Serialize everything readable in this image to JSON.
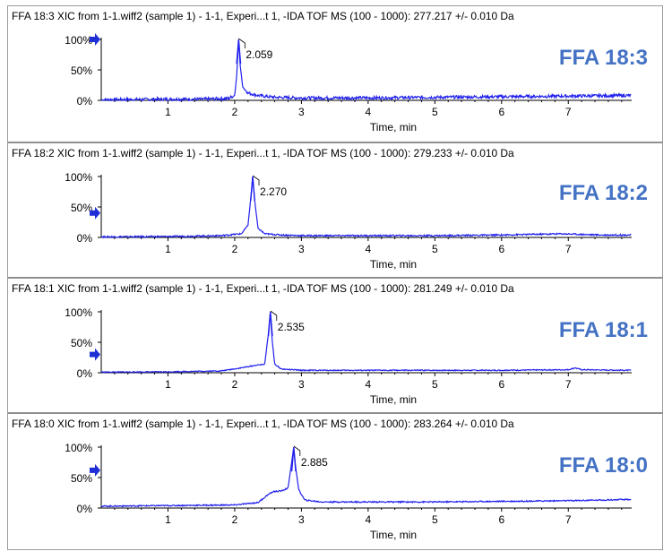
{
  "chart_data": [
    {
      "type": "line",
      "title": "FFA 18:3 XIC from 1-1.wiff2 (sample 1) - 1-1, Experi...t 1, -IDA TOF MS (100 - 1000): 277.217 +/- 0.010 Da",
      "tag": "FFA 18:3",
      "xlabel": "Time, min",
      "ylabel": "",
      "xlim": [
        0,
        7.95
      ],
      "ylim": [
        0,
        100
      ],
      "x_ticks": [
        "1",
        "2",
        "3",
        "4",
        "5",
        "6",
        "7"
      ],
      "y_ticks": [
        "0%",
        "50%",
        "100%"
      ],
      "marker_y": 100,
      "peak_label": "2.059",
      "series": [
        {
          "values": [
            [
              0,
              1
            ],
            [
              0.5,
              1.5
            ],
            [
              1,
              2
            ],
            [
              1.5,
              2
            ],
            [
              1.9,
              3
            ],
            [
              2.0,
              8
            ],
            [
              2.03,
              40
            ],
            [
              2.059,
              100
            ],
            [
              2.08,
              60
            ],
            [
              2.12,
              22
            ],
            [
              2.2,
              12
            ],
            [
              2.35,
              8
            ],
            [
              2.6,
              5
            ],
            [
              3,
              4
            ],
            [
              4,
              4
            ],
            [
              5,
              5
            ],
            [
              6,
              6
            ],
            [
              7,
              7
            ],
            [
              7.9,
              8
            ]
          ]
        }
      ],
      "noise": 2.5
    },
    {
      "type": "line",
      "title": "FFA 18:2 XIC from 1-1.wiff2 (sample 1) - 1-1, Experi...t 1, -IDA TOF MS (100 - 1000): 279.233 +/- 0.010 Da",
      "tag": "FFA 18:2",
      "xlabel": "Time, min",
      "ylabel": "",
      "xlim": [
        0,
        7.95
      ],
      "ylim": [
        0,
        100
      ],
      "x_ticks": [
        "1",
        "2",
        "3",
        "4",
        "5",
        "6",
        "7"
      ],
      "y_ticks": [
        "0%",
        "50%",
        "100%"
      ],
      "marker_y": 40,
      "peak_label": "2.270",
      "series": [
        {
          "values": [
            [
              0,
              1
            ],
            [
              1,
              1.5
            ],
            [
              1.8,
              3
            ],
            [
              2.1,
              6
            ],
            [
              2.2,
              20
            ],
            [
              2.25,
              75
            ],
            [
              2.27,
              100
            ],
            [
              2.3,
              60
            ],
            [
              2.35,
              15
            ],
            [
              2.45,
              6
            ],
            [
              2.7,
              4
            ],
            [
              3,
              3
            ],
            [
              4,
              3
            ],
            [
              5,
              3
            ],
            [
              6,
              4
            ],
            [
              6.9,
              6
            ],
            [
              7.5,
              4
            ],
            [
              7.9,
              4
            ]
          ]
        }
      ],
      "noise": 1.2
    },
    {
      "type": "line",
      "title": "FFA 18:1 XIC from 1-1.wiff2 (sample 1) - 1-1, Experi...t 1, -IDA TOF MS (100 - 1000): 281.249 +/- 0.010 Da",
      "tag": "FFA 18:1",
      "xlabel": "Time, min",
      "ylabel": "",
      "xlim": [
        0,
        7.95
      ],
      "ylim": [
        0,
        100
      ],
      "x_ticks": [
        "1",
        "2",
        "3",
        "4",
        "5",
        "6",
        "7"
      ],
      "y_ticks": [
        "0%",
        "50%",
        "100%"
      ],
      "marker_y": 30,
      "peak_label": "2.535",
      "series": [
        {
          "values": [
            [
              0,
              1
            ],
            [
              1,
              1.5
            ],
            [
              1.8,
              3
            ],
            [
              2.1,
              8
            ],
            [
              2.3,
              12
            ],
            [
              2.45,
              14
            ],
            [
              2.5,
              60
            ],
            [
              2.535,
              100
            ],
            [
              2.56,
              55
            ],
            [
              2.6,
              14
            ],
            [
              2.7,
              6
            ],
            [
              3,
              4
            ],
            [
              4,
              4
            ],
            [
              5,
              4
            ],
            [
              6,
              4
            ],
            [
              7.0,
              5
            ],
            [
              7.1,
              8
            ],
            [
              7.2,
              5
            ],
            [
              7.9,
              4
            ]
          ]
        }
      ],
      "noise": 0.8
    },
    {
      "type": "line",
      "title": "FFA 18:0 XIC from 1-1.wiff2 (sample 1) - 1-1, Experi...t 1, -IDA TOF MS (100 - 1000): 283.264 +/- 0.010 Da",
      "tag": "FFA 18:0",
      "xlabel": "Time, min",
      "ylabel": "",
      "xlim": [
        0,
        7.95
      ],
      "ylim": [
        0,
        100
      ],
      "x_ticks": [
        "1",
        "2",
        "3",
        "4",
        "5",
        "6",
        "7"
      ],
      "y_ticks": [
        "0%",
        "50%",
        "100%"
      ],
      "marker_y": 62,
      "peak_label": "2.885",
      "series": [
        {
          "values": [
            [
              0,
              3
            ],
            [
              1,
              4
            ],
            [
              2,
              5
            ],
            [
              2.35,
              9
            ],
            [
              2.5,
              22
            ],
            [
              2.58,
              27
            ],
            [
              2.7,
              28
            ],
            [
              2.8,
              33
            ],
            [
              2.86,
              80
            ],
            [
              2.885,
              100
            ],
            [
              2.91,
              70
            ],
            [
              2.96,
              30
            ],
            [
              3.05,
              13
            ],
            [
              3.3,
              10
            ],
            [
              4,
              10
            ],
            [
              5,
              10
            ],
            [
              6,
              11
            ],
            [
              7,
              12
            ],
            [
              7.9,
              14
            ]
          ]
        }
      ],
      "noise": 1.0
    }
  ]
}
